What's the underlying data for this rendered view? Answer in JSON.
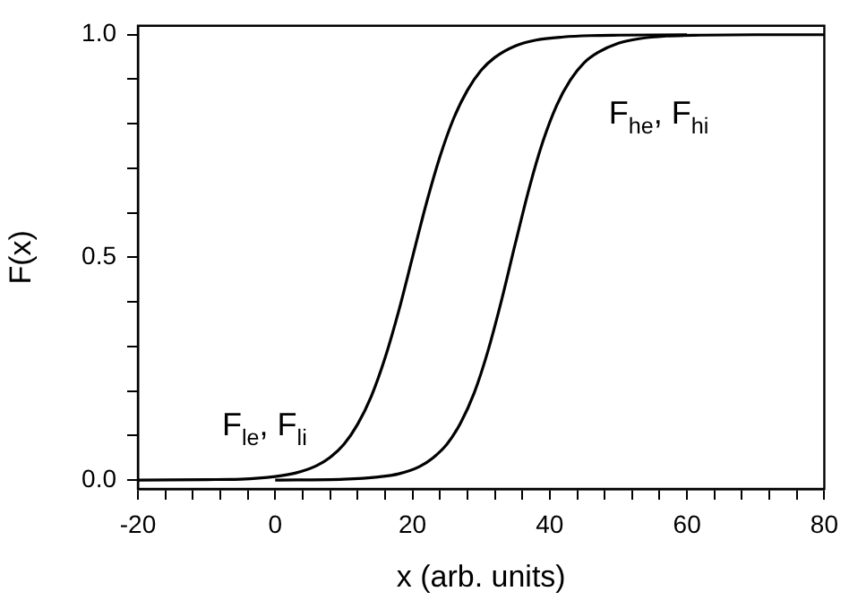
{
  "chart_data": {
    "type": "line",
    "xlabel": "x (arb. units)",
    "ylabel": "F(x)",
    "series": [
      {
        "name": "F$_{le}$, F$_{li}$",
        "color": "#000000",
        "x": [
          -20,
          -10,
          -5,
          0,
          3,
          6,
          8,
          10,
          12,
          14,
          16,
          18,
          20,
          22,
          24,
          26,
          28,
          30,
          32,
          35,
          38,
          42,
          46,
          50,
          60
        ],
        "values": [
          0,
          0.001,
          0.002,
          0.008,
          0.016,
          0.032,
          0.051,
          0.08,
          0.125,
          0.188,
          0.274,
          0.38,
          0.5,
          0.62,
          0.726,
          0.812,
          0.875,
          0.92,
          0.949,
          0.975,
          0.988,
          0.995,
          0.998,
          0.999,
          1
        ]
      },
      {
        "name": "F$_{he}$, F$_{hi}$",
        "color": "#000000",
        "x": [
          0,
          10,
          15,
          18,
          21,
          23,
          25,
          27,
          29,
          31,
          33,
          35,
          37,
          39,
          41,
          43,
          45,
          47,
          50,
          53,
          57,
          62,
          70,
          80
        ],
        "values": [
          0,
          0.002,
          0.007,
          0.014,
          0.03,
          0.05,
          0.08,
          0.128,
          0.196,
          0.29,
          0.405,
          0.532,
          0.655,
          0.76,
          0.841,
          0.898,
          0.937,
          0.96,
          0.981,
          0.991,
          0.997,
          0.999,
          1,
          1
        ]
      }
    ],
    "xlim": [
      -20,
      80
    ],
    "xticks": [
      -20,
      {
        "value": -16,
        "label": null
      },
      {
        "value": -12,
        "label": null
      },
      {
        "value": -8,
        "label": null
      },
      {
        "value": -4,
        "label": null
      },
      0,
      {
        "value": 4,
        "label": null
      },
      {
        "value": 8,
        "label": null
      },
      {
        "value": 12,
        "label": null
      },
      {
        "value": 16,
        "label": null
      },
      20,
      {
        "value": 24,
        "label": null
      },
      {
        "value": 28,
        "label": null
      },
      {
        "value": 32,
        "label": null
      },
      {
        "value": 36,
        "label": null
      },
      40,
      {
        "value": 44,
        "label": null
      },
      {
        "value": 48,
        "label": null
      },
      {
        "value": 52,
        "label": null
      },
      {
        "value": 56,
        "label": null
      },
      60,
      {
        "value": 64,
        "label": null
      },
      {
        "value": 68,
        "label": null
      },
      {
        "value": 72,
        "label": null
      },
      {
        "value": 76,
        "label": null
      },
      80
    ],
    "ylim": [
      -0.02,
      1.02
    ],
    "yticks": [
      {
        "value": 0,
        "label": "0.0"
      },
      {
        "value": 0.1,
        "label": null
      },
      {
        "value": 0.2,
        "label": null
      },
      {
        "value": 0.3,
        "label": null
      },
      {
        "value": 0.4,
        "label": null
      },
      {
        "value": 0.5,
        "label": "0.5"
      },
      {
        "value": 0.6,
        "label": null
      },
      {
        "value": 0.7,
        "label": null
      },
      {
        "value": 0.8,
        "label": null
      },
      {
        "value": 0.9,
        "label": null
      },
      {
        "value": 1,
        "label": "1.0"
      }
    ],
    "grid": false,
    "legend": false,
    "marker": "none",
    "line_style": "solid"
  }
}
